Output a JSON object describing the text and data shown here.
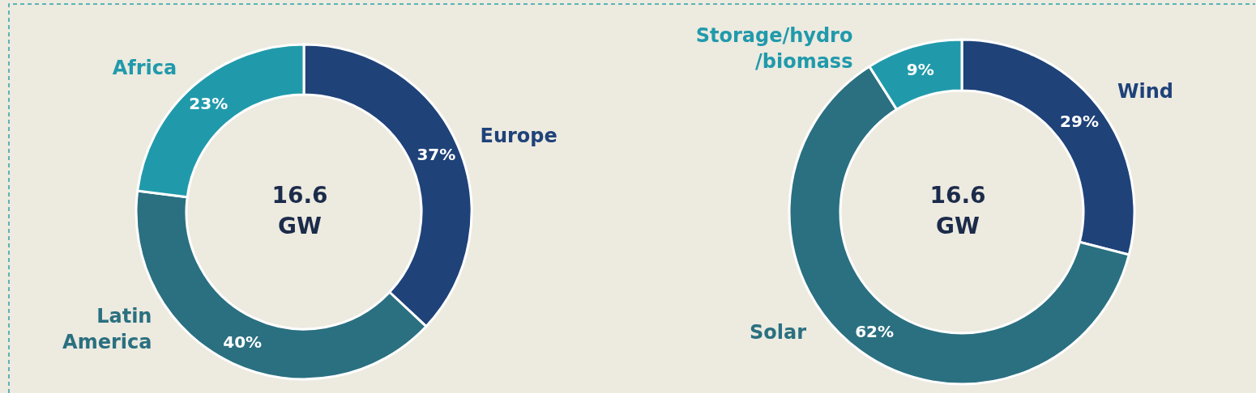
{
  "chart_data": [
    {
      "type": "donut",
      "categories": [
        "Europe",
        "Latin America",
        "Africa"
      ],
      "values": [
        37,
        40,
        23
      ],
      "colors": [
        "#1f4279",
        "#2a7080",
        "#209aab"
      ],
      "value_labels": [
        "37%",
        "40%",
        "23%"
      ],
      "annotations": [
        "16.6 GW"
      ]
    },
    {
      "type": "donut",
      "categories": [
        "Wind",
        "Solar",
        "Storage/hydro/biomass"
      ],
      "values": [
        29,
        62,
        9
      ],
      "colors": [
        "#1f4279",
        "#2a7080",
        "#209aab"
      ],
      "value_labels": [
        "29%",
        "62%",
        "9%"
      ],
      "annotations": [
        "16.6 GW"
      ]
    }
  ]
}
